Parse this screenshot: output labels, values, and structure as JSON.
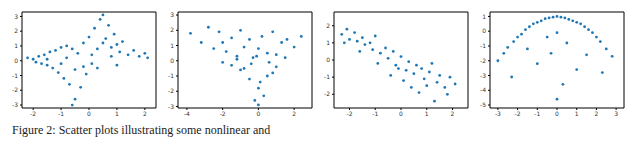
{
  "caption": "Figure 2: Scatter plots illustrating some nonlinear and",
  "chart_data": [
    {
      "type": "scatter",
      "color": "#1f77b4",
      "marker": "circle",
      "xlim": [
        -2.4,
        2.4
      ],
      "xticks": [
        -2,
        -1,
        0,
        1,
        2
      ],
      "ylim": [
        -3.2,
        3.3
      ],
      "yticks": [
        -3,
        -2,
        -1,
        0,
        1,
        2,
        3
      ],
      "x": [
        -2.2,
        -2.0,
        -1.9,
        -1.8,
        -1.7,
        -1.6,
        -1.5,
        -1.4,
        -1.3,
        -1.2,
        -1.1,
        -1.0,
        -0.9,
        -0.8,
        -0.7,
        -0.6,
        -0.5,
        -0.4,
        -0.3,
        -0.2,
        -0.1,
        0,
        0.1,
        0.2,
        0.3,
        0.4,
        0.5,
        0.6,
        0.7,
        0.8,
        0.9,
        1.0,
        1.1,
        1.2,
        1.4,
        1.6,
        1.8,
        2.0,
        2.1,
        -1.5,
        -1.0,
        -0.5,
        -0.8,
        0.3,
        0.5,
        0.8,
        1.0,
        -0.2,
        0.1,
        -0.6
      ],
      "values": [
        0.2,
        0.1,
        -0.1,
        0.3,
        -0.2,
        0.4,
        -0.3,
        0.6,
        -0.5,
        0.7,
        -0.8,
        0.9,
        -1.2,
        1.0,
        -1.6,
        0.8,
        -2.6,
        0.5,
        -1.8,
        1.2,
        -0.9,
        1.6,
        0.4,
        2.2,
        -0.5,
        2.8,
        3.1,
        1.5,
        2.4,
        0.9,
        1.8,
        1.1,
        0.6,
        1.3,
        0.4,
        0.7,
        0.3,
        0.5,
        0.2,
        0.1,
        -0.2,
        -0.6,
        0.2,
        0.8,
        1.2,
        0.3,
        -0.3,
        -0.4,
        -0.2,
        -3.0
      ]
    },
    {
      "type": "scatter",
      "color": "#1f77b4",
      "marker": "circle",
      "xlim": [
        -4.5,
        3
      ],
      "xticks": [
        -4,
        -2,
        0,
        2
      ],
      "ylim": [
        -3.1,
        3.2
      ],
      "yticks": [
        -3,
        -2,
        -1,
        0,
        1,
        2,
        3
      ],
      "x": [
        -3.8,
        -3.2,
        -2.8,
        -2.5,
        -2.2,
        -2.0,
        -1.8,
        -1.5,
        -1.2,
        -1.0,
        -0.8,
        -0.5,
        -0.3,
        0,
        0.2,
        0.5,
        0.8,
        1.0,
        1.3,
        1.6,
        2.0,
        2.4,
        -1.5,
        -1.0,
        -0.5,
        0,
        0.5,
        1.0,
        -0.8,
        0.3,
        -0.2,
        0.1,
        -1.2,
        0.8,
        -2.0,
        1.5,
        -0.4,
        0.6,
        0,
        -0.1
      ],
      "values": [
        1.8,
        1.2,
        2.2,
        0.8,
        1.9,
        1.2,
        0.6,
        1.5,
        0.3,
        2.0,
        0.9,
        1.4,
        0.2,
        0.8,
        1.6,
        0.5,
        1.9,
        0.4,
        1.2,
        1.4,
        0.9,
        1.6,
        -0.3,
        -0.6,
        -1.2,
        -1.8,
        -1.0,
        -0.4,
        -0.5,
        -2.3,
        -2.6,
        -1.4,
        0.1,
        -0.8,
        -0.1,
        0.2,
        -0.2,
        -0.1,
        -2.9,
        0.3
      ]
    },
    {
      "type": "scatter",
      "color": "#1f77b4",
      "marker": "circle",
      "xlim": [
        -2.6,
        2.6
      ],
      "xticks": [
        -2,
        -1,
        0,
        1,
        2
      ],
      "ylim": [
        -2.8,
        2.8
      ],
      "yticks": [
        -2,
        -1,
        0,
        1,
        2
      ],
      "x": [
        -2.3,
        -2.1,
        -2.0,
        -1.8,
        -1.7,
        -1.5,
        -1.4,
        -1.2,
        -1.1,
        -1.0,
        -0.8,
        -0.6,
        -0.5,
        -0.3,
        -0.2,
        0,
        0.2,
        0.3,
        0.5,
        0.6,
        0.8,
        0.9,
        1.1,
        1.2,
        1.4,
        1.5,
        1.7,
        1.9,
        2.1,
        -1.6,
        -0.9,
        -0.4,
        0.1,
        0.7,
        1.0,
        1.3,
        -2.2,
        0.4,
        -0.1,
        1.8
      ],
      "values": [
        1.5,
        1.8,
        1.2,
        1.6,
        1.1,
        1.3,
        0.9,
        1.0,
        0.6,
        1.4,
        0.4,
        0.7,
        0.1,
        0.5,
        -0.3,
        0.2,
        -0.6,
        -0.1,
        -0.8,
        -0.3,
        -0.5,
        -1.1,
        -0.7,
        -0.2,
        -1.3,
        -0.9,
        -1.6,
        -1.0,
        -1.4,
        0.5,
        -0.2,
        -0.9,
        -1.2,
        -1.9,
        -1.5,
        -2.4,
        1.0,
        -1.6,
        -0.5,
        -2.0
      ]
    },
    {
      "type": "scatter",
      "color": "#1f77b4",
      "marker": "circle",
      "xlim": [
        -3.4,
        3.4
      ],
      "xticks": [
        -3,
        -2,
        -1,
        0,
        1,
        2,
        3
      ],
      "ylim": [
        -5.2,
        1.3
      ],
      "yticks": [
        -5,
        -4,
        -3,
        -2,
        -1,
        0,
        1
      ],
      "x": [
        -3.0,
        -2.7,
        -2.5,
        -2.2,
        -2.0,
        -1.8,
        -1.6,
        -1.4,
        -1.2,
        -1.0,
        -0.8,
        -0.6,
        -0.4,
        -0.2,
        0,
        0.2,
        0.4,
        0.6,
        0.8,
        1.0,
        1.2,
        1.4,
        1.6,
        1.8,
        2.0,
        2.2,
        2.5,
        2.8,
        -1.5,
        -0.5,
        0.5,
        1.5,
        -1.0,
        0,
        1.0,
        -2.3,
        2.3,
        -0.3,
        0.3,
        0
      ],
      "values": [
        -2.0,
        -1.5,
        -1.1,
        -0.7,
        -0.4,
        -0.2,
        0.1,
        0.3,
        0.5,
        0.6,
        0.7,
        0.85,
        0.9,
        0.95,
        1.0,
        0.95,
        0.9,
        0.8,
        0.7,
        0.6,
        0.5,
        0.3,
        0.1,
        -0.1,
        -0.4,
        -0.7,
        -1.2,
        -1.7,
        -1.2,
        -0.4,
        -0.8,
        -1.6,
        -2.2,
        -0.1,
        -2.6,
        -3.1,
        -2.8,
        -1.5,
        -3.6,
        -4.6
      ]
    }
  ]
}
